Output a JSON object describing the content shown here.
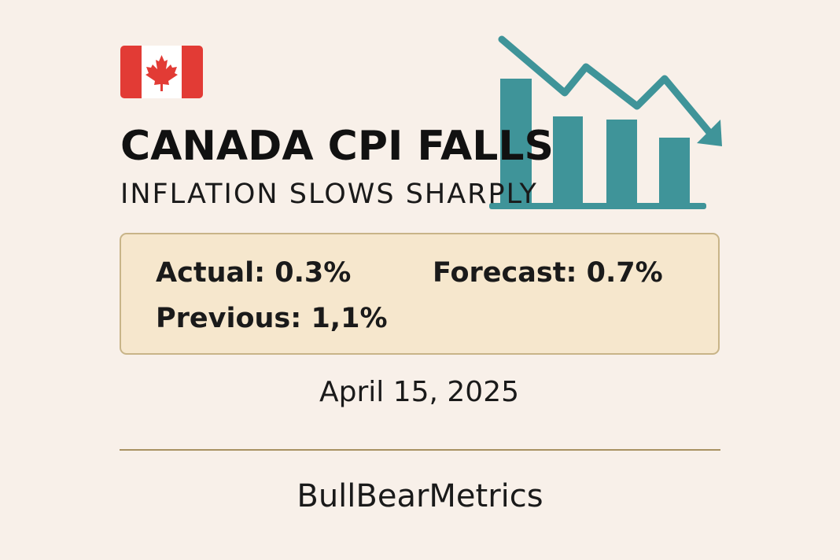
{
  "header": {
    "title": "CANADA CPI FALLS",
    "subtitle": "INFLATION SLOWS SHARPLY"
  },
  "stats": {
    "actual": "Actual: 0.3%",
    "forecast": "Forecast: 0.7%",
    "previous": "Previous: 1,1%"
  },
  "date": "April 15, 2025",
  "brand": "BullBearMetrics"
}
